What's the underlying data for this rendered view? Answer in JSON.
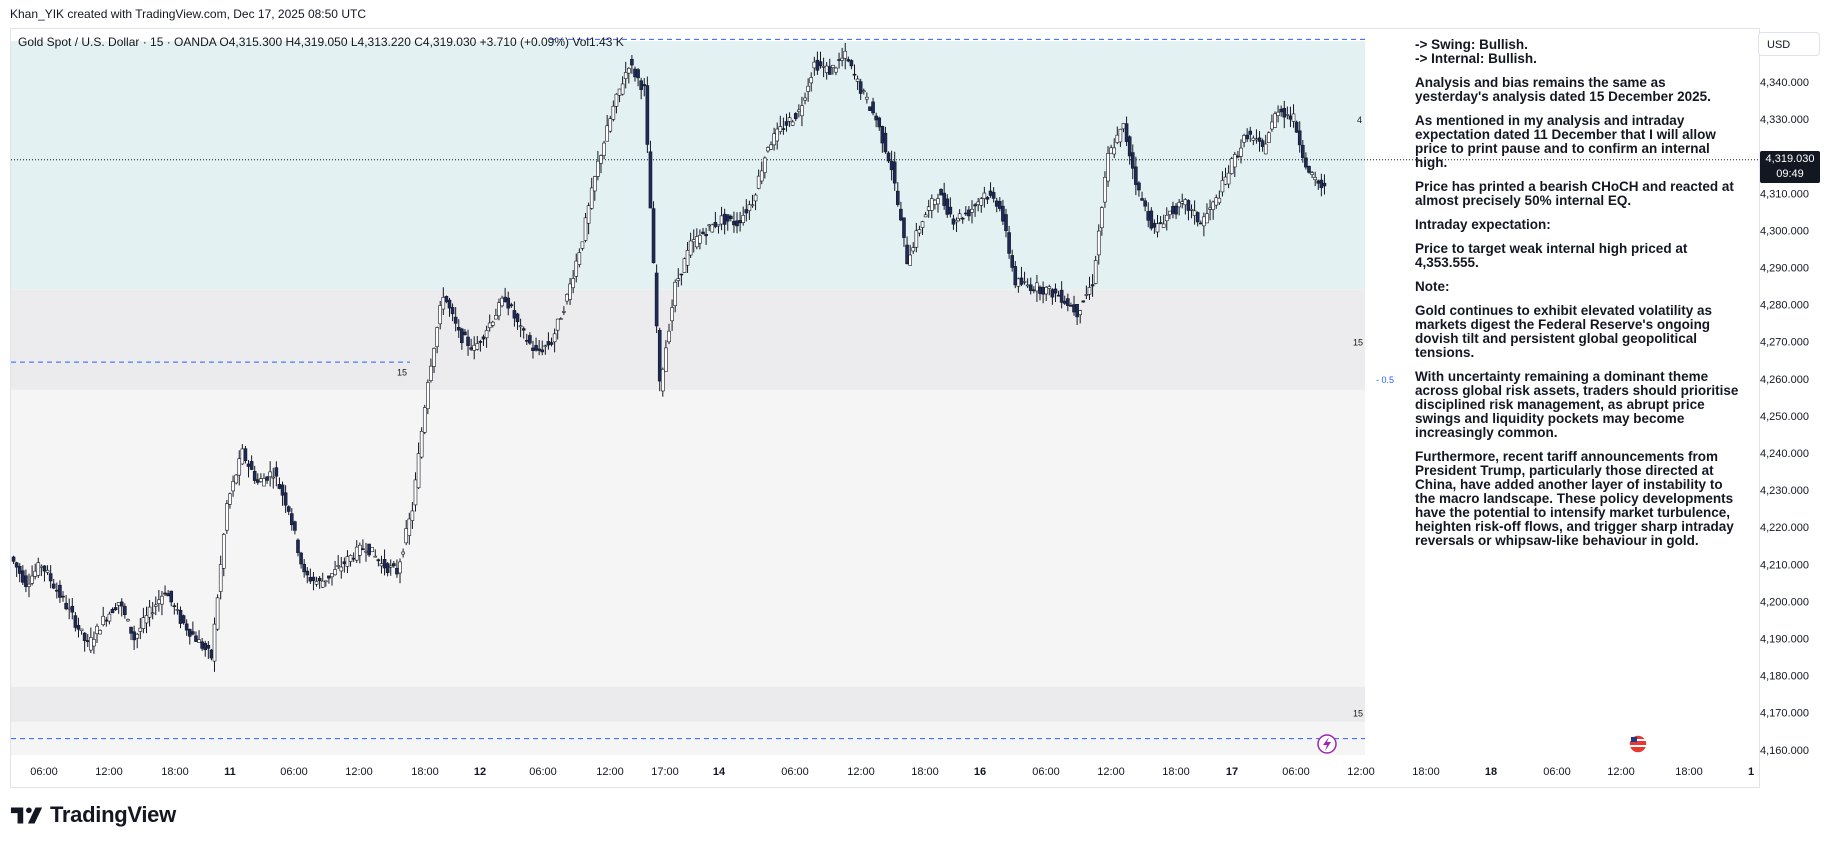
{
  "credit": "Khan_YIK created with TradingView.com, Dec 17, 2025 08:50 UTC",
  "legend": "Gold Spot / U.S. Dollar · 15 · OANDA  O4,315.300  H4,319.050  L4,313.220  C4,319.030  +3.710 (+0.09%)  Vol1.43 K",
  "currency_button": "USD",
  "last_price": "4,319.030",
  "countdown": "09:49",
  "brand": "TradingView",
  "notes": [
    "-> Swing: Bullish.",
    "-> Internal: Bullish.",
    "Analysis and bias remains the same as yesterday's analysis dated 15 December 2025.",
    "As mentioned in my analysis and intraday expectation dated 11 December that I will allow price to print pause and to confirm an internal high.",
    "Price has printed a bearish CHoCH and reacted at almost precisely 50% internal EQ.",
    "Intraday expectation:",
    "Price to target weak internal high priced at 4,353.555.",
    "Note:",
    "Gold continues to exhibit elevated volatility as markets digest the Federal Reserve's ongoing dovish tilt and persistent global geopolitical tensions.",
    "With uncertainty remaining a dominant theme across global risk assets, traders should prioritise disciplined risk management, as abrupt price swings and liquidity pockets may become increasingly common.",
    "Furthermore, recent tariff announcements from President Trump, particularly those directed at China, have added another layer of instability to the macro landscape. These policy developments have the potential to intensify market turbulence, heighten risk-off flows, and trigger sharp intraday reversals or whipsaw-like behaviour in gold."
  ],
  "chart_data": {
    "type": "candlestick",
    "instrument": "Gold Spot / U.S. Dollar",
    "timeframe": "15",
    "source": "OANDA",
    "ylim": [
      4155,
      4350
    ],
    "y_ticks": [
      "4,340.000",
      "4,330.000",
      "4,320.000",
      "4,310.000",
      "4,300.000",
      "4,290.000",
      "4,280.000",
      "4,270.000",
      "4,260.000",
      "4,250.000",
      "4,240.000",
      "4,230.000",
      "4,220.000",
      "4,210.000",
      "4,200.000",
      "4,190.000",
      "4,180.000",
      "4,170.000",
      "4,160.000"
    ],
    "y_tick_values": [
      4340,
      4330,
      4320,
      4310,
      4300,
      4290,
      4280,
      4270,
      4260,
      4250,
      4240,
      4230,
      4220,
      4210,
      4200,
      4190,
      4180,
      4170,
      4160
    ],
    "x_ticks": [
      "06:00",
      "12:00",
      "18:00",
      "11",
      "06:00",
      "12:00",
      "18:00",
      "12",
      "06:00",
      "12:00",
      "17:00",
      "14",
      "06:00",
      "12:00",
      "18:00",
      "16",
      "06:00",
      "12:00",
      "18:00",
      "17",
      "06:00",
      "12:00",
      "18:00",
      "18",
      "06:00",
      "12:00",
      "18:00",
      "1"
    ],
    "price_path": [
      4212,
      4205,
      4210,
      4203,
      4196,
      4188,
      4195,
      4200,
      4190,
      4197,
      4203,
      4195,
      4190,
      4185,
      4226,
      4240,
      4232,
      4235,
      4225,
      4207,
      4205,
      4208,
      4212,
      4215,
      4210,
      4208,
      4225,
      4260,
      4283,
      4272,
      4268,
      4275,
      4282,
      4273,
      4267,
      4270,
      4282,
      4298,
      4318,
      4333,
      4345,
      4338,
      4258,
      4285,
      4296,
      4300,
      4303,
      4302,
      4308,
      4323,
      4328,
      4332,
      4345,
      4343,
      4347,
      4338,
      4330,
      4317,
      4292,
      4303,
      4310,
      4303,
      4305,
      4310,
      4307,
      4286,
      4285,
      4284,
      4282,
      4278,
      4286,
      4320,
      4328,
      4310,
      4300,
      4305,
      4307,
      4302,
      4308,
      4318,
      4326,
      4322,
      4333,
      4330,
      4315,
      4311
    ],
    "last_value": 4319.03,
    "zones": [
      {
        "from": 4284,
        "to": 4351,
        "color": "#e4f1f2"
      },
      {
        "from": 4257,
        "to": 4284,
        "color": "#ececee"
      },
      {
        "from": 4151,
        "to": 4257,
        "color": "#f6f5f6"
      }
    ],
    "levels": [
      {
        "price": 4351.5,
        "label": ""
      },
      {
        "price": 4264.5,
        "label": "15"
      },
      {
        "price": 4163,
        "label": ""
      }
    ],
    "annotations": [
      {
        "text": "4",
        "price": 4330
      },
      {
        "text": "15",
        "price": 4270
      },
      {
        "text": "15",
        "price": 4262
      },
      {
        "text": "- 0.5",
        "price": 4260
      },
      {
        "text": "15",
        "price": 4170
      }
    ]
  }
}
